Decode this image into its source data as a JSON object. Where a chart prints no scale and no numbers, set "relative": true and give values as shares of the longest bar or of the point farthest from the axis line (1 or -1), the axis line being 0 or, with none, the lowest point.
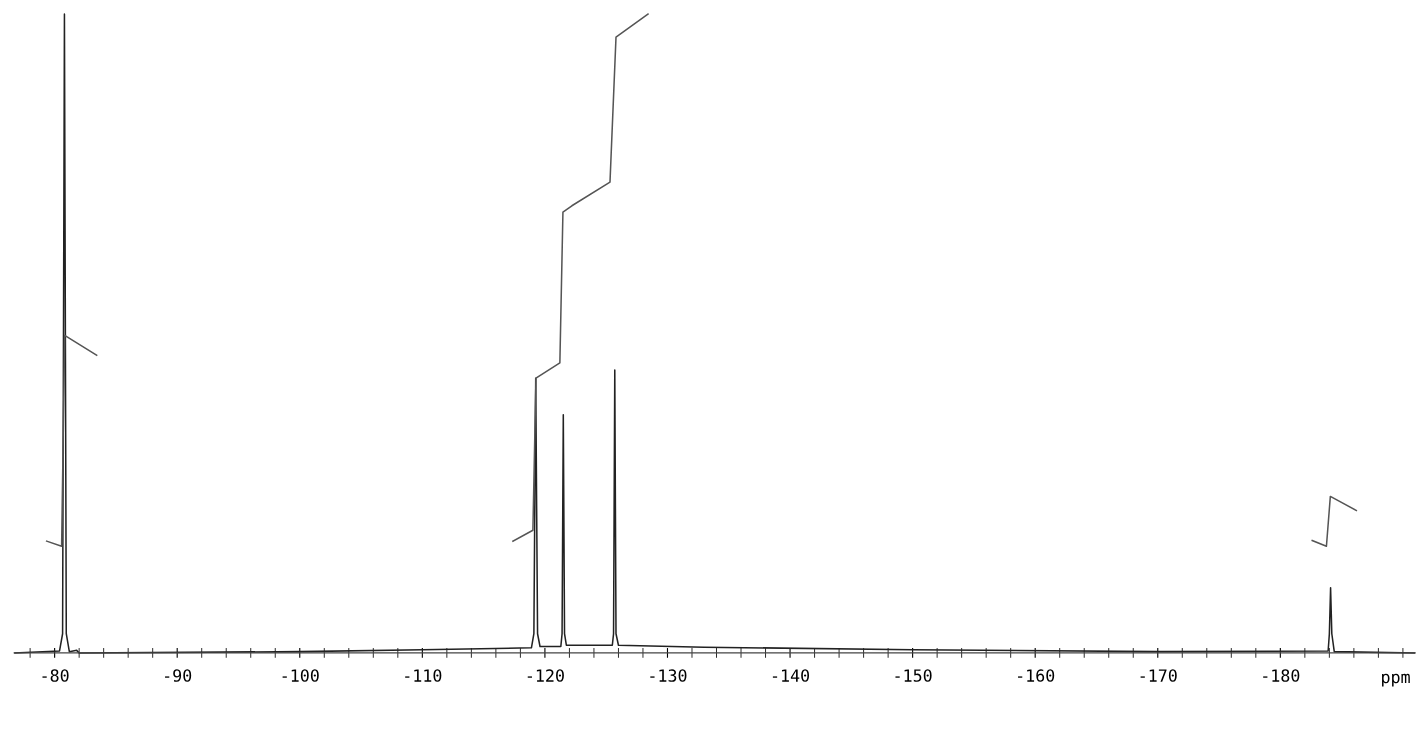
{
  "chart_data": {
    "type": "line",
    "relative": true,
    "xlabel": "ppm",
    "xlim": [
      -76.7,
      -191
    ],
    "xticks": [
      {
        "value": -78,
        "label": null
      },
      -80,
      {
        "value": -82,
        "label": null
      },
      {
        "value": -84,
        "label": null
      },
      {
        "value": -86,
        "label": null
      },
      {
        "value": -88,
        "label": null
      },
      -90,
      {
        "value": -92,
        "label": null
      },
      {
        "value": -94,
        "label": null
      },
      {
        "value": -96,
        "label": null
      },
      {
        "value": -98,
        "label": null
      },
      -100,
      {
        "value": -102,
        "label": null
      },
      {
        "value": -104,
        "label": null
      },
      {
        "value": -106,
        "label": null
      },
      {
        "value": -108,
        "label": null
      },
      -110,
      {
        "value": -112,
        "label": null
      },
      {
        "value": -114,
        "label": null
      },
      {
        "value": -116,
        "label": null
      },
      {
        "value": -118,
        "label": null
      },
      -120,
      {
        "value": -122,
        "label": null
      },
      {
        "value": -124,
        "label": null
      },
      {
        "value": -126,
        "label": null
      },
      {
        "value": -128,
        "label": null
      },
      -130,
      {
        "value": -132,
        "label": null
      },
      {
        "value": -134,
        "label": null
      },
      {
        "value": -136,
        "label": null
      },
      {
        "value": -138,
        "label": null
      },
      -140,
      {
        "value": -142,
        "label": null
      },
      {
        "value": -144,
        "label": null
      },
      {
        "value": -146,
        "label": null
      },
      {
        "value": -148,
        "label": null
      },
      -150,
      {
        "value": -152,
        "label": null
      },
      {
        "value": -154,
        "label": null
      },
      {
        "value": -156,
        "label": null
      },
      {
        "value": -158,
        "label": null
      },
      -160,
      {
        "value": -162,
        "label": null
      },
      {
        "value": -164,
        "label": null
      },
      {
        "value": -166,
        "label": null
      },
      {
        "value": -168,
        "label": null
      },
      -170,
      {
        "value": -172,
        "label": null
      },
      {
        "value": -174,
        "label": null
      },
      {
        "value": -176,
        "label": null
      },
      {
        "value": -178,
        "label": null
      },
      -180,
      {
        "value": -182,
        "label": null
      },
      {
        "value": -184,
        "label": null
      },
      {
        "value": -186,
        "label": null
      },
      {
        "value": -188,
        "label": null
      },
      {
        "value": -190,
        "label": null
      }
    ],
    "grid": false,
    "legend": false,
    "marker": "none",
    "line_style": "solid",
    "series": [
      {
        "color": "#222222",
        "x": [
          -76.7,
          -80.4,
          -80.65,
          -80.8,
          -80.95,
          -81.2,
          -81.8,
          -82,
          -100,
          -110,
          -118.9,
          -119.1,
          -119.25,
          -119.4,
          -119.6,
          -121.3,
          -121.4,
          -121.5,
          -121.6,
          -121.75,
          -125.5,
          -125.6,
          -125.7,
          -125.8,
          -126,
          -133,
          -150,
          -170,
          -183.9,
          -184.0,
          -184.1,
          -184.2,
          -184.4,
          -191
        ],
        "values": [
          0,
          0.003,
          0.03,
          1.0,
          0.03,
          0.002,
          0.004,
          0,
          0.002,
          0.005,
          0.008,
          0.03,
          0.43,
          0.03,
          0.01,
          0.01,
          0.03,
          0.373,
          0.03,
          0.012,
          0.012,
          0.03,
          0.443,
          0.03,
          0.012,
          0.009,
          0.005,
          0.002,
          0.003,
          0.03,
          0.102,
          0.03,
          0.002,
          0
        ]
      },
      {
        "color": "#555555",
        "x": [
          -79.35,
          -80.57,
          -80.82,
          -83.43
        ],
        "values": [
          0.175,
          0.167,
          0.497,
          0.466
        ]
      },
      {
        "color": "#555555",
        "x": [
          -117.39,
          -119.02,
          -119.27,
          -121.22,
          -121.47,
          -122.2,
          -125.31,
          -125.8,
          -128.41
        ],
        "values": [
          0.175,
          0.192,
          0.43,
          0.454,
          0.69,
          0.7,
          0.737,
          0.964,
          1.0
        ]
      },
      {
        "color": "#555555",
        "x": [
          -182.6,
          -183.76,
          -184.08,
          -186.2
        ],
        "values": [
          0.176,
          0.167,
          0.245,
          0.223
        ]
      }
    ]
  }
}
